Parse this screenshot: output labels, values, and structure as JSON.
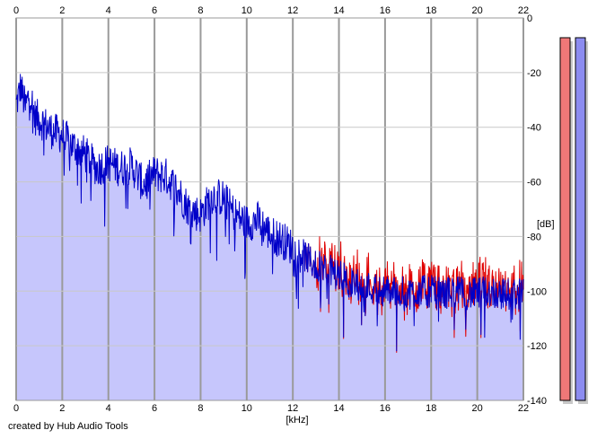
{
  "credit": "created by Hub Audio Tools",
  "chart_data": {
    "type": "area",
    "title": "",
    "xlabel": "[kHz]",
    "ylabel": "[dB]",
    "xlim": [
      0,
      22
    ],
    "ylim": [
      -140,
      0
    ],
    "x_ticks": [
      0,
      2,
      4,
      6,
      8,
      10,
      12,
      14,
      16,
      18,
      20,
      22
    ],
    "y_ticks": [
      0,
      -20,
      -40,
      -60,
      -80,
      -100,
      -120,
      -140
    ],
    "grid": true,
    "colors": {
      "fill": "#c6c6fc",
      "blue_channel": "#0000c8",
      "red_channel": "#e00000",
      "grid_light": "#c8c8c8",
      "grid_dark": "#9a9a9a",
      "meter_left": "#f07878",
      "meter_right": "#8c8cf0"
    },
    "series": [
      {
        "x": [
          0,
          0.2,
          0.4,
          0.6,
          0.8,
          1,
          1.5,
          2,
          2.5,
          3,
          3.5,
          4,
          4.5,
          5,
          5.5,
          6,
          6.5,
          7,
          7.5,
          8,
          8.5,
          9,
          9.5,
          10,
          10.5,
          11,
          11.5,
          12,
          12.5,
          13,
          13.5,
          14,
          14.5,
          15,
          15.5,
          16,
          16.5,
          17,
          17.5,
          18,
          18.5,
          19,
          19.5,
          20,
          20.5,
          21,
          21.5,
          22
        ],
        "values": [
          -32,
          -25,
          -33,
          -27,
          -36,
          -37,
          -41,
          -43,
          -47,
          -50,
          -55,
          -53,
          -55,
          -54,
          -61,
          -57,
          -58,
          -63,
          -70,
          -72,
          -65,
          -66,
          -72,
          -75,
          -74,
          -79,
          -81,
          -84,
          -87,
          -91,
          -92,
          -94,
          -97,
          -98,
          -99,
          -100,
          -100,
          -101,
          -100,
          -100,
          -101,
          -100,
          -101,
          -101,
          -100,
          -101,
          -101,
          -101
        ]
      }
    ]
  }
}
